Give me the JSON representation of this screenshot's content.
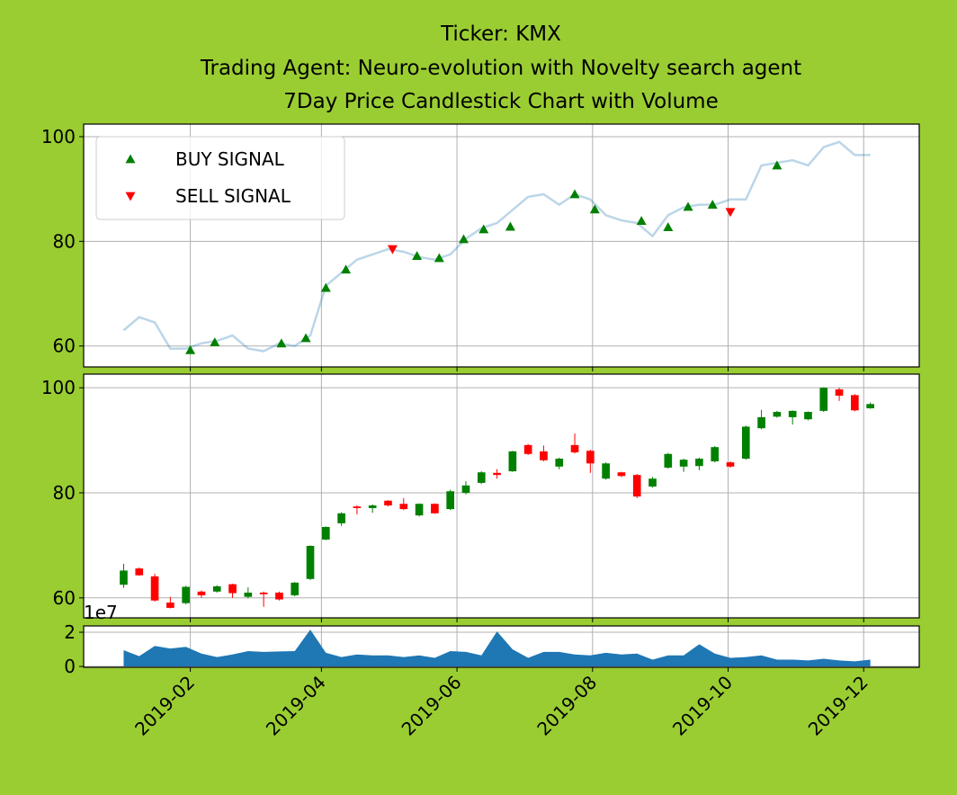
{
  "chart_data": {
    "title": [
      "Ticker: KMX",
      "Trading Agent: Neuro-evolution with Novelty search agent",
      "7Day Price Candlestick Chart with Volume"
    ],
    "xlim": [
      "2018-12-15",
      "2019-12-26"
    ],
    "xticks": [
      {
        "value": "2019-02-01",
        "label": "2019-02"
      },
      {
        "value": "2019-04-01",
        "label": "2019-04"
      },
      {
        "value": "2019-06-01",
        "label": "2019-06"
      },
      {
        "value": "2019-08-01",
        "label": "2019-08"
      },
      {
        "value": "2019-10-01",
        "label": "2019-10"
      },
      {
        "value": "2019-12-01",
        "label": "2019-12"
      }
    ],
    "grid": true,
    "panels": [
      {
        "type": "line",
        "x": [
          "2019-01-02",
          "2019-01-09",
          "2019-01-16",
          "2019-01-23",
          "2019-01-30",
          "2019-02-06",
          "2019-02-13",
          "2019-02-20",
          "2019-02-27",
          "2019-03-06",
          "2019-03-13",
          "2019-03-20",
          "2019-03-27",
          "2019-04-03",
          "2019-04-10",
          "2019-04-17",
          "2019-04-24",
          "2019-05-01",
          "2019-05-08",
          "2019-05-15",
          "2019-05-22",
          "2019-05-29",
          "2019-06-05",
          "2019-06-12",
          "2019-06-19",
          "2019-06-26",
          "2019-07-03",
          "2019-07-10",
          "2019-07-17",
          "2019-07-24",
          "2019-07-31",
          "2019-08-07",
          "2019-08-14",
          "2019-08-21",
          "2019-08-28",
          "2019-09-04",
          "2019-09-11",
          "2019-09-18",
          "2019-09-25",
          "2019-10-02",
          "2019-10-09",
          "2019-10-16",
          "2019-10-23",
          "2019-10-30",
          "2019-11-06",
          "2019-11-13",
          "2019-11-20",
          "2019-11-27",
          "2019-12-04"
        ],
        "values": [
          63,
          65.5,
          64.5,
          59.5,
          59.5,
          60.5,
          61,
          62,
          59.5,
          59,
          60.5,
          60,
          62,
          71.5,
          74,
          76.5,
          77.5,
          78.5,
          78,
          77,
          76.5,
          77.5,
          80.5,
          82.5,
          83.5,
          86,
          88.5,
          89,
          87,
          89,
          88,
          85,
          84,
          83.5,
          81,
          85,
          86.5,
          87,
          87,
          88,
          88,
          94.5,
          95,
          95.5,
          94.5,
          98,
          99,
          96.5,
          96.5
        ],
        "color": "#1f77b4",
        "alpha": 0.3,
        "signals": [
          {
            "name": "BUY SIGNAL",
            "color": "green",
            "marker": "^",
            "x": [
              "2019-02-01",
              "2019-02-12",
              "2019-03-14",
              "2019-03-25",
              "2019-04-03",
              "2019-04-12",
              "2019-05-14",
              "2019-05-24",
              "2019-06-04",
              "2019-06-13",
              "2019-06-25",
              "2019-07-24",
              "2019-08-02",
              "2019-08-23",
              "2019-09-04",
              "2019-09-13",
              "2019-09-24",
              "2019-10-23"
            ],
            "values": [
              59.2,
              60.7,
              60.5,
              61.5,
              71.1,
              74.6,
              77.2,
              76.8,
              80.4,
              82.3,
              82.8,
              89.0,
              86.1,
              83.9,
              82.7,
              86.6,
              87.0,
              94.5
            ]
          },
          {
            "name": "SELL SIGNAL",
            "color": "red",
            "marker": "v",
            "x": [
              "2019-05-03",
              "2019-10-02"
            ],
            "values": [
              78.5,
              85.6
            ]
          }
        ],
        "legend": "upper left",
        "ylim": [
          56.0,
          102.4
        ],
        "yticks": [
          60,
          80,
          100
        ]
      },
      {
        "type": "candlestick",
        "x": [
          "2019-01-02",
          "2019-01-09",
          "2019-01-16",
          "2019-01-23",
          "2019-01-30",
          "2019-02-06",
          "2019-02-13",
          "2019-02-20",
          "2019-02-27",
          "2019-03-06",
          "2019-03-13",
          "2019-03-20",
          "2019-03-27",
          "2019-04-03",
          "2019-04-10",
          "2019-04-17",
          "2019-04-24",
          "2019-05-01",
          "2019-05-08",
          "2019-05-15",
          "2019-05-22",
          "2019-05-29",
          "2019-06-05",
          "2019-06-12",
          "2019-06-19",
          "2019-06-26",
          "2019-07-03",
          "2019-07-10",
          "2019-07-17",
          "2019-07-24",
          "2019-07-31",
          "2019-08-07",
          "2019-08-14",
          "2019-08-21",
          "2019-08-28",
          "2019-09-04",
          "2019-09-11",
          "2019-09-18",
          "2019-09-25",
          "2019-10-02",
          "2019-10-09",
          "2019-10-16",
          "2019-10-23",
          "2019-10-30",
          "2019-11-06",
          "2019-11-13",
          "2019-11-20",
          "2019-11-27",
          "2019-12-04"
        ],
        "open": [
          62.5,
          65.6,
          64.1,
          59.1,
          59.0,
          61.2,
          61.2,
          62.6,
          60.2,
          61.0,
          61.0,
          60.5,
          63.6,
          71.1,
          74.2,
          77.4,
          77.1,
          78.5,
          77.9,
          75.7,
          77.9,
          76.9,
          80.0,
          81.9,
          83.8,
          84.1,
          89.1,
          87.9,
          85.0,
          89.1,
          88.0,
          82.7,
          83.9,
          83.4,
          81.2,
          84.8,
          85.0,
          85.1,
          86.0,
          85.8,
          86.5,
          92.3,
          94.5,
          94.4,
          94.0,
          95.6,
          99.7,
          98.6,
          96.1
        ],
        "high": [
          66.5,
          65.8,
          64.6,
          60.2,
          62.3,
          61.4,
          62.4,
          62.7,
          62.0,
          61.2,
          61.2,
          63.0,
          70.0,
          73.6,
          76.3,
          77.6,
          77.8,
          78.6,
          79.0,
          78.0,
          78.0,
          80.6,
          82.2,
          84.1,
          84.5,
          88.0,
          89.3,
          89.0,
          86.7,
          91.3,
          88.2,
          85.8,
          84.0,
          83.6,
          83.0,
          87.6,
          86.5,
          86.7,
          88.9,
          86.0,
          92.8,
          95.8,
          95.6,
          95.7,
          95.5,
          100.1,
          100.0,
          98.8,
          97.2
        ],
        "low": [
          61.9,
          64.2,
          59.3,
          58.0,
          58.8,
          60.0,
          61.0,
          60.0,
          59.9,
          58.3,
          59.5,
          60.3,
          63.4,
          71.0,
          73.7,
          75.9,
          76.2,
          77.4,
          76.7,
          75.5,
          76.0,
          76.7,
          79.7,
          81.7,
          82.7,
          84.0,
          87.2,
          86.0,
          84.5,
          87.5,
          83.8,
          82.5,
          83.0,
          79.0,
          81.0,
          84.6,
          84.0,
          84.3,
          85.8,
          84.8,
          86.3,
          92.1,
          94.3,
          93.0,
          93.8,
          95.4,
          97.5,
          95.5,
          96.0
        ],
        "close": [
          65.2,
          64.3,
          59.5,
          58.1,
          62.1,
          60.5,
          62.2,
          60.9,
          61.0,
          60.7,
          59.7,
          62.9,
          69.9,
          73.5,
          76.1,
          77.1,
          77.6,
          77.6,
          76.9,
          77.9,
          76.1,
          80.3,
          81.4,
          83.9,
          83.4,
          87.9,
          87.4,
          86.2,
          86.5,
          87.7,
          85.6,
          85.6,
          83.2,
          79.3,
          82.7,
          87.4,
          86.3,
          86.5,
          88.7,
          85.0,
          92.6,
          94.4,
          95.4,
          95.6,
          95.4,
          100.0,
          98.5,
          95.7,
          96.9
        ],
        "up_color": "green",
        "down_color": "red",
        "ylim": [
          56.2,
          102.6
        ],
        "yticks": [
          60,
          80,
          100
        ]
      },
      {
        "type": "area",
        "x": [
          "2019-01-02",
          "2019-01-09",
          "2019-01-16",
          "2019-01-23",
          "2019-01-30",
          "2019-02-06",
          "2019-02-13",
          "2019-02-20",
          "2019-02-27",
          "2019-03-06",
          "2019-03-13",
          "2019-03-20",
          "2019-03-27",
          "2019-04-03",
          "2019-04-10",
          "2019-04-17",
          "2019-04-24",
          "2019-05-01",
          "2019-05-08",
          "2019-05-15",
          "2019-05-22",
          "2019-05-29",
          "2019-06-05",
          "2019-06-12",
          "2019-06-19",
          "2019-06-26",
          "2019-07-03",
          "2019-07-10",
          "2019-07-17",
          "2019-07-24",
          "2019-07-31",
          "2019-08-07",
          "2019-08-14",
          "2019-08-21",
          "2019-08-28",
          "2019-09-04",
          "2019-09-11",
          "2019-09-18",
          "2019-09-25",
          "2019-10-02",
          "2019-10-09",
          "2019-10-16",
          "2019-10-23",
          "2019-10-30",
          "2019-11-06",
          "2019-11-13",
          "2019-11-20",
          "2019-11-27",
          "2019-12-04"
        ],
        "values": [
          0.95,
          0.6,
          1.2,
          1.05,
          1.15,
          0.75,
          0.55,
          0.7,
          0.9,
          0.85,
          0.88,
          0.9,
          2.15,
          0.8,
          0.55,
          0.7,
          0.65,
          0.65,
          0.55,
          0.65,
          0.5,
          0.9,
          0.85,
          0.65,
          2.05,
          1.0,
          0.5,
          0.85,
          0.85,
          0.7,
          0.65,
          0.8,
          0.7,
          0.75,
          0.4,
          0.65,
          0.65,
          1.3,
          0.75,
          0.5,
          0.55,
          0.65,
          0.4,
          0.4,
          0.35,
          0.45,
          0.35,
          0.3,
          0.4
        ],
        "color": "#1f77b4",
        "offset_label": "1e7",
        "ylim": [
          -0.05,
          2.37
        ],
        "yticks": [
          0,
          2
        ]
      }
    ]
  }
}
